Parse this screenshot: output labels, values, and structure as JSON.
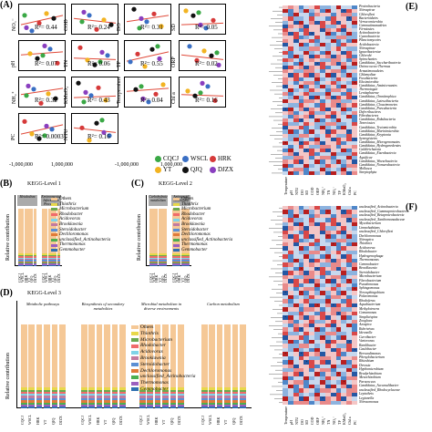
{
  "panels": {
    "a": {
      "label": "(A)"
    },
    "b": {
      "label": "(B)",
      "title": "KEGG-Level 1",
      "ylabel": "Relative contribution"
    },
    "c": {
      "label": "(C)",
      "title": "KEGG-Level 2",
      "ylabel": "Relative contribution"
    },
    "d": {
      "label": "(D)",
      "title": "KEGG-Level 3",
      "ylabel": "Relative contribution"
    },
    "e": {
      "label": "(E)"
    },
    "f": {
      "label": "(F)"
    }
  },
  "scatter": {
    "x_ticks": [
      "-1,000,000",
      "0",
      "1,000,000"
    ],
    "plots": [
      {
        "var": "NO₃⁻",
        "r2": "R²= 0.44"
      },
      {
        "var": "COD",
        "r2": "R²= 0.24"
      },
      {
        "var": "DO",
        "r2": "R²= 0.31"
      },
      {
        "var": "SD",
        "r2": "R²= 0.05"
      },
      {
        "var": "pH",
        "r2": "R²= 0.07"
      },
      {
        "var": "TN",
        "r2": "R²= 0.06"
      },
      {
        "var": "TP",
        "r2": "R²= 0.55"
      },
      {
        "var": "ORP",
        "r2": "R²= 0.02"
      },
      {
        "var": "NH₄⁺",
        "r2": "R²= 0.32"
      },
      {
        "var": "KMnO₄",
        "r2": "R²= 0.43"
      },
      {
        "var": "Temperature",
        "r2": "R²= 0.04"
      },
      {
        "var": "Chl a",
        "r2": "R²= 0.16"
      },
      {
        "var": "PC",
        "r2": "R²= 0.0003"
      },
      {
        "var": "NTU",
        "r2": "R²= 0.16"
      }
    ],
    "legend": [
      {
        "name": "CQCJ",
        "color": "#3aa845"
      },
      {
        "name": "WSCL",
        "color": "#3a6fc4"
      },
      {
        "name": "HRK",
        "color": "#d63a3a"
      },
      {
        "name": "YT",
        "color": "#f2b321"
      },
      {
        "name": "QJQ",
        "color": "#111111"
      },
      {
        "name": "DJZX",
        "color": "#8a3fbf"
      }
    ]
  },
  "kegg": {
    "samples": [
      "CQCJ",
      "WSCL",
      "HRK",
      "YT",
      "QJQ",
      "DJZX"
    ],
    "legend_bc": [
      "Others",
      "Thiothrix",
      "Microbacterium",
      "Rhodobacter",
      "Acidovorax",
      "Brooklawnia",
      "Steroidobacter",
      "Dechloromonas",
      "unclassified_Actinobacteria",
      "Thermomonas",
      "Gemmobacter"
    ],
    "legend_colors": [
      "#f5c896",
      "#e8d84a",
      "#6aa84f",
      "#f06b6b",
      "#7fd3e8",
      "#c27ba0",
      "#5b8fd4",
      "#e07b39",
      "#4caf50",
      "#9c5fbf",
      "#2f6fb0"
    ],
    "b_groups": [
      "Metabolism",
      "Environmental Information Processing"
    ],
    "c_groups": [
      "Carbohydrate metabolism",
      "Amino acid metabolism"
    ],
    "d_groups": [
      "Metabolic pathways",
      "Biosynthesis of secondary metabolites",
      "Microbial metabolism in diverse environments",
      "Carbon metabolism"
    ]
  },
  "heatmap_e": {
    "rows": [
      "Proteobacteria",
      "Nitrospirae",
      "Chloroflexi",
      "Bacteroidetes",
      "Verrucomicrobia",
      "Gemmatimonadetes",
      "Firmicutes",
      "Actinobacteria",
      "Cyanobacteria",
      "Planctomycetes",
      "Acidobacteria",
      "Nitrospinae",
      "Ignavibacteriae",
      "Chlorobi",
      "Spirochaetes",
      "Candidatus_Saccharibacteria",
      "Deinococcus-Thermus",
      "Armatimonadetes",
      "Chlamydiae",
      "Fusobacteria",
      "Elusimicrobia",
      "Candidatus_Aminicenantes",
      "Thermotogae",
      "Lentisphaerae",
      "Candidatus_Omnitrophica",
      "Candidatus_Latescibacteria",
      "Candidatus_Cloacimonetes",
      "Candidatus_Parcubacteria",
      "Deferribacteres",
      "Fibrobacteres",
      "Candidatus_Rokubacteria",
      "Tenericutes",
      "Candidatus_Tectomicrobia",
      "Candidatus_Marinimicrobia",
      "Candidatus_Kryptonia",
      "Synergistetes",
      "Candidatus_Microgenomates",
      "Candidatus_Hydrogenedentes",
      "Calditrichaeota",
      "Candidatus_Eisenbacteria",
      "Aquificae",
      "Candidatus_Woesebacteria",
      "Candidatus_Nomurabacteria",
      "Mollusca",
      "Streptophyta"
    ],
    "cols": [
      "Temperature",
      "pH",
      "NTU",
      "DO",
      "SD",
      "COD",
      "ORP",
      "NH₄⁺",
      "TN",
      "NO₃⁻",
      "TP",
      "KMnO₄",
      "Chl a",
      "PC"
    ]
  },
  "heatmap_f": {
    "rows": [
      "unclassified_Actinobacteria",
      "unclassified_Gammaproteobacteria",
      "unclassified_Betaproteobacteria",
      "unclassified_Xanthomonadaceae",
      "Mycobacterium",
      "Limnohabitans",
      "unclassified_Chloroflexi",
      "Dechloromonas",
      "Nitrospira",
      "Thiothrix",
      "Acidovorax",
      "Rhodobacter",
      "Hydrogenophaga",
      "Thermomonas",
      "Gemmobacter",
      "Brooklawnia",
      "Steroidobacter",
      "Microbacterium",
      "Flavobacterium",
      "Pseudomonas",
      "Sphingomonas",
      "Novosphingobium",
      "Polaromonas",
      "Rhodoferax",
      "Aquabacterium",
      "Methylotenera",
      "Comamonas",
      "Simplicispira",
      "Zoogloea",
      "Azospira",
      "Rubrivivax",
      "Ideonella",
      "Curvibacter",
      "Variovorax",
      "Ramlibacter",
      "Caulobacter",
      "Brevundimonas",
      "Phenylobacterium",
      "Rhizobium",
      "Devosia",
      "Hyphomicrobium",
      "Bradyrhizobium",
      "Mesorhizobium",
      "Paracoccus",
      "Candidatus_Accumulibacter",
      "unclassified_Rhodocyclaceae",
      "Leptothrix",
      "Legionella",
      "Nitrosomonas"
    ],
    "cols": [
      "Temperature",
      "pH",
      "NTU",
      "DO",
      "SD",
      "COD",
      "ORP",
      "NH₄⁺",
      "TN",
      "NO₃⁻",
      "TP",
      "KMnO₄",
      "Chl a",
      "PC"
    ]
  }
}
